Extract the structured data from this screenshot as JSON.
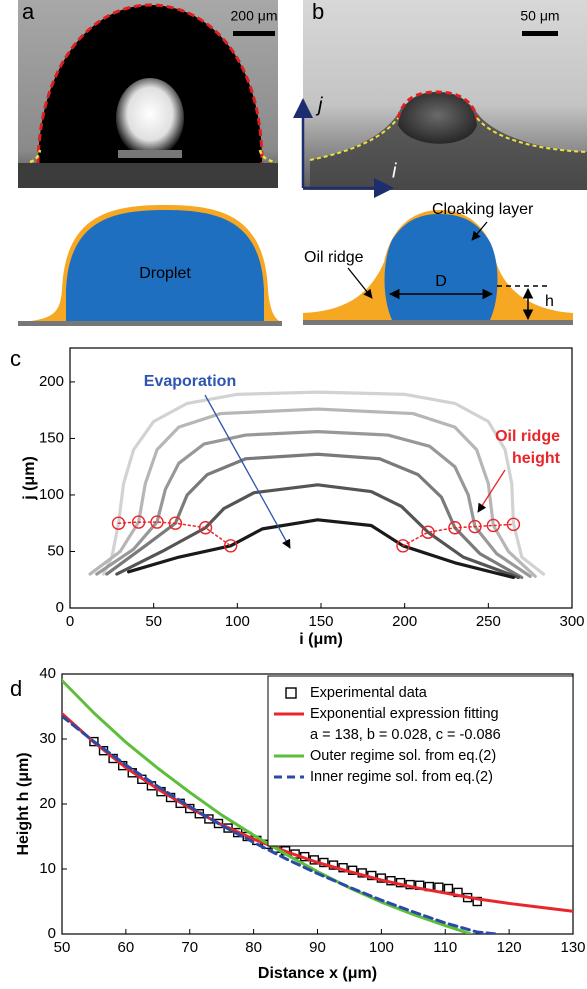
{
  "panels": [
    {
      "label": "a",
      "scale_bar": "200 μm"
    },
    {
      "label": "b",
      "scale_bar": "50 μm",
      "axis_j": "j",
      "axis_i": "i"
    }
  ],
  "schematic": {
    "droplet": "Droplet",
    "oil_ridge": "Oil ridge",
    "cloaking_layer": "Cloaking layer",
    "diameter": "D",
    "height": "h"
  },
  "chart_data": [
    {
      "type": "line",
      "panel_label": "c",
      "xlabel": "i (μm)",
      "ylabel": "j (μm)",
      "xlim": [
        0,
        300
      ],
      "ylim": [
        0,
        230
      ],
      "xticks": [
        0,
        50,
        100,
        150,
        200,
        250,
        300
      ],
      "yticks": [
        0,
        50,
        100,
        150,
        200
      ],
      "annotations": [
        {
          "lines": [
            "Evaporation"
          ],
          "color": "#2f55b0"
        },
        {
          "lines": [
            "Oil ridge",
            "height"
          ],
          "color": "#e8262b"
        }
      ],
      "series": [
        {
          "color": "#d2d2d2",
          "line_style": "solid",
          "marker": "none",
          "x": [
            20,
            25,
            29,
            32,
            38,
            50,
            70,
            100,
            148,
            200,
            230,
            250,
            260,
            264,
            265,
            270,
            283
          ],
          "values": [
            30,
            45,
            75,
            110,
            140,
            165,
            181,
            189,
            191,
            189,
            181,
            165,
            140,
            110,
            75,
            45,
            30
          ]
        },
        {
          "color": "#b6b6b6",
          "line_style": "solid",
          "marker": "none",
          "x": [
            12,
            30,
            41,
            45,
            52,
            65,
            90,
            148,
            205,
            230,
            243,
            250,
            253,
            262,
            278
          ],
          "values": [
            30,
            50,
            76,
            110,
            140,
            160,
            172,
            176,
            172,
            160,
            140,
            110,
            73,
            50,
            28
          ]
        },
        {
          "color": "#989898",
          "line_style": "solid",
          "marker": "none",
          "x": [
            16,
            38,
            52,
            57,
            65,
            80,
            105,
            148,
            190,
            215,
            230,
            238,
            242,
            255,
            275
          ],
          "values": [
            30,
            52,
            76,
            105,
            128,
            145,
            153,
            156,
            153,
            143,
            125,
            100,
            72,
            48,
            28
          ]
        },
        {
          "color": "#7a7a7a",
          "line_style": "solid",
          "marker": "none",
          "x": [
            22,
            45,
            63,
            70,
            82,
            105,
            148,
            185,
            208,
            222,
            230,
            245,
            270
          ],
          "values": [
            30,
            55,
            75,
            100,
            118,
            132,
            136,
            132,
            118,
            98,
            71,
            48,
            27
          ]
        },
        {
          "color": "#555555",
          "line_style": "solid",
          "marker": "none",
          "x": [
            28,
            55,
            81,
            92,
            110,
            148,
            180,
            198,
            214,
            235,
            268
          ],
          "values": [
            30,
            50,
            71,
            88,
            102,
            109,
            103,
            90,
            67,
            45,
            27
          ]
        },
        {
          "color": "#1a1a1a",
          "line_style": "solid",
          "marker": "none",
          "x": [
            35,
            65,
            96,
            115,
            148,
            180,
            199,
            230,
            265
          ],
          "values": [
            32,
            45,
            55,
            70,
            78,
            73,
            55,
            40,
            27
          ]
        },
        {
          "color": "#e8262b",
          "line_style": "dotted",
          "marker": "circle",
          "x": [
            29,
            41,
            52,
            63,
            81,
            96
          ],
          "values": [
            75,
            76,
            76,
            75,
            71,
            55
          ]
        },
        {
          "color": "#e8262b",
          "line_style": "dotted",
          "marker": "circle",
          "x": [
            199,
            214,
            230,
            242,
            253,
            265
          ],
          "values": [
            55,
            67,
            71,
            72,
            73,
            74
          ]
        }
      ]
    },
    {
      "type": "line",
      "panel_label": "d",
      "xlabel": "Distance x (μm)",
      "ylabel": "Height h (μm)",
      "xlim": [
        50,
        130
      ],
      "ylim": [
        0,
        40
      ],
      "xticks": [
        50,
        60,
        70,
        80,
        90,
        100,
        110,
        120,
        130
      ],
      "yticks": [
        0,
        10,
        20,
        30,
        40
      ],
      "legend": "upper right",
      "series": [
        {
          "name": "Experimental data",
          "color": "#000000",
          "line_style": "none",
          "marker": "square",
          "x": [
            55,
            56.5,
            58,
            59.5,
            61,
            62.5,
            64,
            65.5,
            67,
            68.5,
            70,
            71.5,
            73,
            74.5,
            76,
            77.5,
            79,
            80.5,
            82,
            83.5,
            85,
            86.5,
            88,
            89.5,
            91,
            92.5,
            94,
            95.5,
            97,
            98.5,
            100,
            101.5,
            103,
            104.5,
            106,
            107.5,
            109,
            110.5,
            112,
            113.5,
            115
          ],
          "values": [
            29.6,
            28.2,
            27.0,
            25.9,
            24.8,
            23.8,
            22.8,
            21.9,
            21.0,
            20.1,
            19.3,
            18.5,
            17.7,
            17.0,
            16.3,
            15.6,
            15.0,
            14.4,
            13.8,
            13.2,
            12.8,
            12.3,
            11.9,
            11.4,
            11.0,
            10.6,
            10.2,
            9.8,
            9.4,
            9.0,
            8.6,
            8.2,
            7.9,
            7.6,
            7.5,
            7.3,
            7.2,
            7.0,
            6.4,
            5.6,
            5.0
          ]
        },
        {
          "name": "Exponential expression fitting",
          "params": "a = 138, b = 0.028, c = -0.086",
          "color": "#e8262b",
          "line_style": "solid",
          "marker": "none",
          "x": [
            50,
            55,
            60,
            65,
            70,
            75,
            80,
            85,
            90,
            95,
            100,
            105,
            110,
            115,
            120,
            125,
            130
          ],
          "values": [
            33.9,
            29.5,
            25.6,
            22.3,
            19.4,
            16.8,
            14.6,
            12.7,
            11.0,
            9.6,
            8.3,
            7.2,
            6.3,
            5.4,
            4.7,
            4.1,
            3.5
          ]
        },
        {
          "name": "Outer regime sol. from eq.(2)",
          "color": "#5cbf3a",
          "line_style": "solid",
          "marker": "none",
          "x": [
            50,
            55,
            60,
            65,
            70,
            75,
            80,
            85,
            90,
            95,
            100,
            105,
            110,
            114
          ],
          "values": [
            39,
            34,
            29.5,
            25.5,
            21.8,
            18.3,
            15.2,
            12.3,
            9.6,
            7.1,
            4.9,
            3,
            1.3,
            0
          ]
        },
        {
          "name": "Inner regime sol. from eq.(2)",
          "color": "#2b4aa8",
          "line_style": "dashed",
          "marker": "none",
          "x": [
            50,
            55,
            60,
            65,
            70,
            75,
            80,
            85,
            90,
            95,
            100,
            105,
            110,
            115,
            118
          ],
          "values": [
            33.5,
            29.6,
            26,
            22.7,
            19.6,
            16.7,
            14.1,
            11.6,
            9.3,
            7.2,
            5.2,
            3.4,
            1.7,
            0.3,
            0
          ]
        }
      ]
    }
  ]
}
